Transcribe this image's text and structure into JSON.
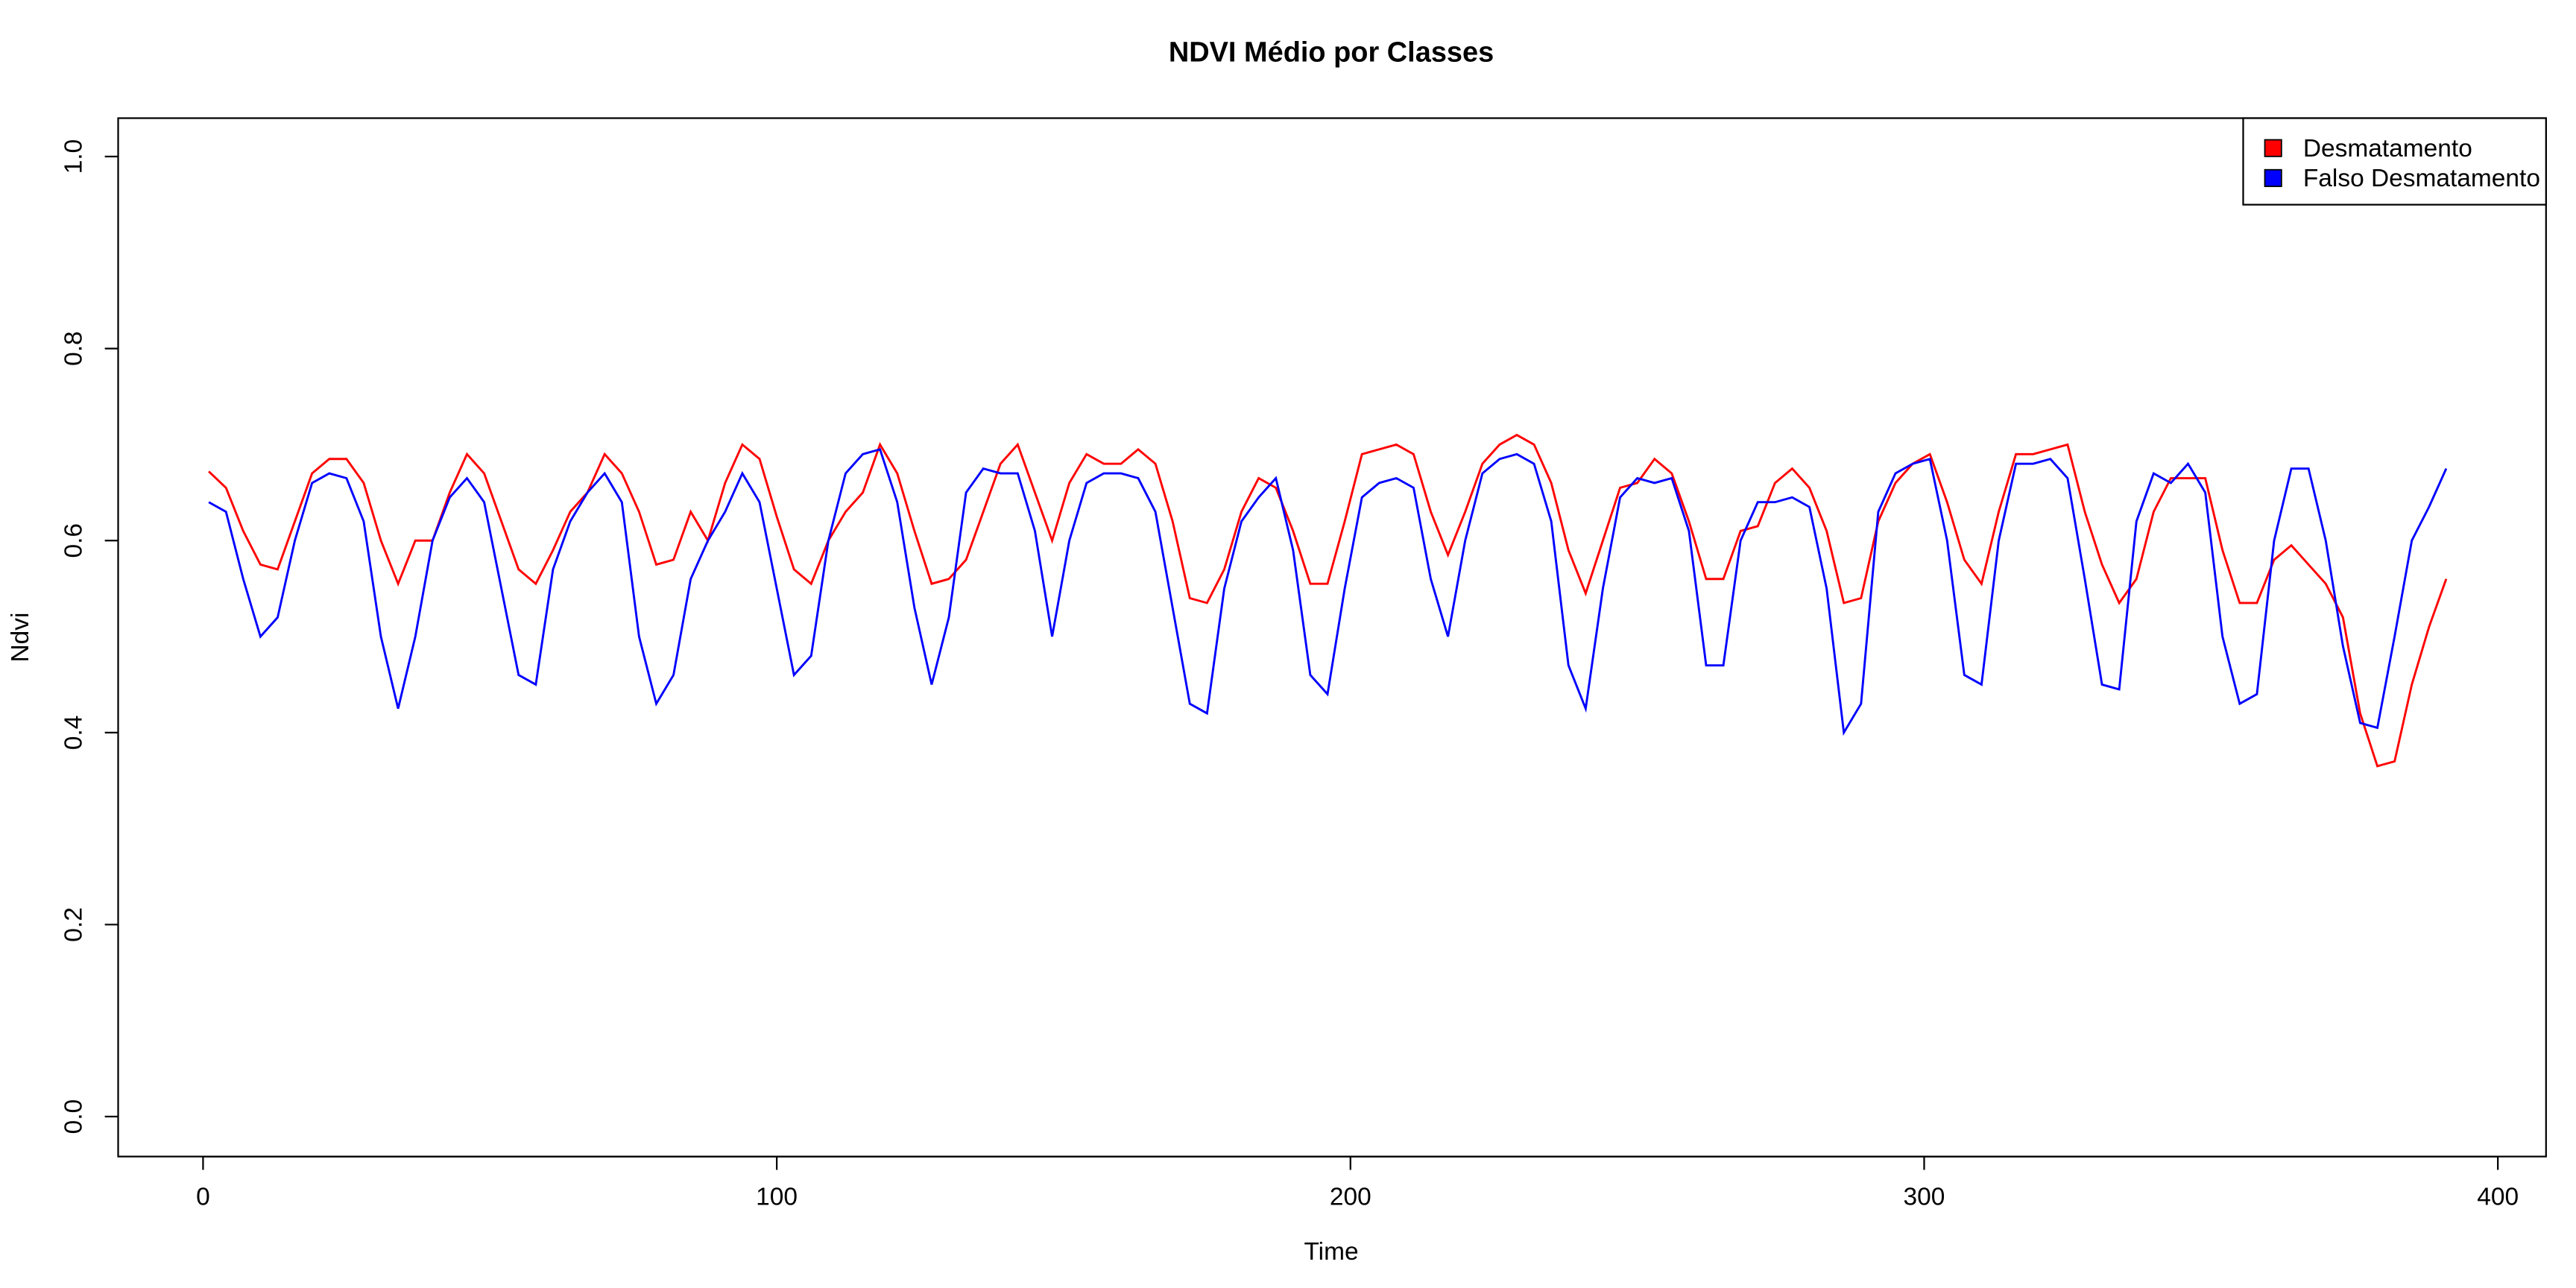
{
  "chart_data": {
    "type": "line",
    "title": "NDVI Médio por Classes",
    "x_label": "Time",
    "y_label": "Ndvi",
    "x": [
      1,
      4,
      7,
      10,
      13,
      16,
      19,
      22,
      25,
      28,
      31,
      34,
      37,
      40,
      43,
      46,
      49,
      52,
      55,
      58,
      61,
      64,
      67,
      70,
      73,
      76,
      79,
      82,
      85,
      88,
      91,
      94,
      97,
      100,
      103,
      106,
      109,
      112,
      115,
      118,
      121,
      124,
      127,
      130,
      133,
      136,
      139,
      142,
      145,
      148,
      151,
      154,
      157,
      160,
      163,
      166,
      169,
      172,
      175,
      178,
      181,
      184,
      187,
      190,
      193,
      196,
      199,
      202,
      205,
      208,
      211,
      214,
      217,
      220,
      223,
      226,
      229,
      232,
      235,
      238,
      241,
      244,
      247,
      250,
      253,
      256,
      259,
      262,
      265,
      268,
      271,
      274,
      277,
      280,
      283,
      286,
      289,
      292,
      295,
      298,
      301,
      304,
      307,
      310,
      313,
      316,
      319,
      322,
      325,
      328,
      331,
      334,
      337,
      340,
      343,
      346,
      349,
      352,
      355,
      358,
      361,
      364,
      367,
      370,
      373,
      376,
      379,
      382,
      385,
      388,
      391
    ],
    "series": [
      {
        "name": "Desmatamento",
        "color": "#ff0000",
        "values": [
          0.672,
          0.655,
          0.61,
          0.575,
          0.57,
          0.62,
          0.67,
          0.685,
          0.685,
          0.66,
          0.6,
          0.555,
          0.6,
          0.6,
          0.65,
          0.69,
          0.67,
          0.62,
          0.57,
          0.555,
          0.59,
          0.63,
          0.65,
          0.69,
          0.67,
          0.63,
          0.575,
          0.58,
          0.63,
          0.6,
          0.66,
          0.7,
          0.685,
          0.625,
          0.57,
          0.555,
          0.6,
          0.63,
          0.65,
          0.7,
          0.67,
          0.61,
          0.555,
          0.56,
          0.58,
          0.63,
          0.68,
          0.7,
          0.65,
          0.6,
          0.66,
          0.69,
          0.68,
          0.68,
          0.695,
          0.68,
          0.62,
          0.54,
          0.535,
          0.57,
          0.63,
          0.665,
          0.655,
          0.61,
          0.555,
          0.555,
          0.62,
          0.69,
          0.695,
          0.7,
          0.69,
          0.63,
          0.585,
          0.63,
          0.68,
          0.7,
          0.71,
          0.7,
          0.66,
          0.59,
          0.545,
          0.6,
          0.655,
          0.66,
          0.685,
          0.67,
          0.62,
          0.56,
          0.56,
          0.61,
          0.615,
          0.66,
          0.675,
          0.655,
          0.61,
          0.535,
          0.54,
          0.62,
          0.66,
          0.68,
          0.69,
          0.64,
          0.58,
          0.555,
          0.63,
          0.69,
          0.69,
          0.695,
          0.7,
          0.63,
          0.575,
          0.535,
          0.56,
          0.63,
          0.665,
          0.665,
          0.665,
          0.59,
          0.535,
          0.535,
          0.58,
          0.595,
          0.575,
          0.555,
          0.52,
          0.42,
          0.365,
          0.37,
          0.45,
          0.51,
          0.56
        ]
      },
      {
        "name": "Falso Desmatamento",
        "color": "#0000ff",
        "values": [
          0.64,
          0.63,
          0.56,
          0.5,
          0.52,
          0.6,
          0.66,
          0.67,
          0.665,
          0.62,
          0.5,
          0.425,
          0.5,
          0.6,
          0.645,
          0.665,
          0.64,
          0.55,
          0.46,
          0.45,
          0.57,
          0.62,
          0.65,
          0.67,
          0.64,
          0.5,
          0.43,
          0.46,
          0.56,
          0.6,
          0.63,
          0.67,
          0.64,
          0.55,
          0.46,
          0.48,
          0.6,
          0.67,
          0.69,
          0.695,
          0.64,
          0.53,
          0.45,
          0.52,
          0.65,
          0.675,
          0.67,
          0.67,
          0.61,
          0.5,
          0.6,
          0.66,
          0.67,
          0.67,
          0.665,
          0.63,
          0.53,
          0.43,
          0.42,
          0.55,
          0.62,
          0.645,
          0.665,
          0.59,
          0.46,
          0.44,
          0.55,
          0.645,
          0.66,
          0.665,
          0.655,
          0.56,
          0.5,
          0.6,
          0.67,
          0.685,
          0.69,
          0.68,
          0.62,
          0.47,
          0.425,
          0.55,
          0.645,
          0.665,
          0.66,
          0.665,
          0.61,
          0.47,
          0.47,
          0.6,
          0.64,
          0.64,
          0.645,
          0.635,
          0.55,
          0.4,
          0.43,
          0.63,
          0.67,
          0.68,
          0.685,
          0.6,
          0.46,
          0.45,
          0.6,
          0.68,
          0.68,
          0.685,
          0.665,
          0.56,
          0.45,
          0.445,
          0.62,
          0.67,
          0.66,
          0.68,
          0.65,
          0.5,
          0.43,
          0.44,
          0.6,
          0.675,
          0.675,
          0.6,
          0.49,
          0.41,
          0.405,
          0.5,
          0.6,
          0.635,
          0.675
        ]
      }
    ],
    "xlim": [
      -14.8,
      408.4
    ],
    "xticks": [
      0,
      100,
      200,
      300,
      400
    ],
    "ylim": [
      -0.0416,
      1.04
    ],
    "yticks": [
      {
        "value": 0,
        "label": "0.0"
      },
      {
        "value": 0.2,
        "label": "0.2"
      },
      {
        "value": 0.4,
        "label": "0.4"
      },
      {
        "value": 0.6,
        "label": "0.6"
      },
      {
        "value": 0.8,
        "label": "0.8"
      },
      {
        "value": 1,
        "label": "1.0"
      }
    ],
    "legend": "top-right",
    "grid": false
  }
}
